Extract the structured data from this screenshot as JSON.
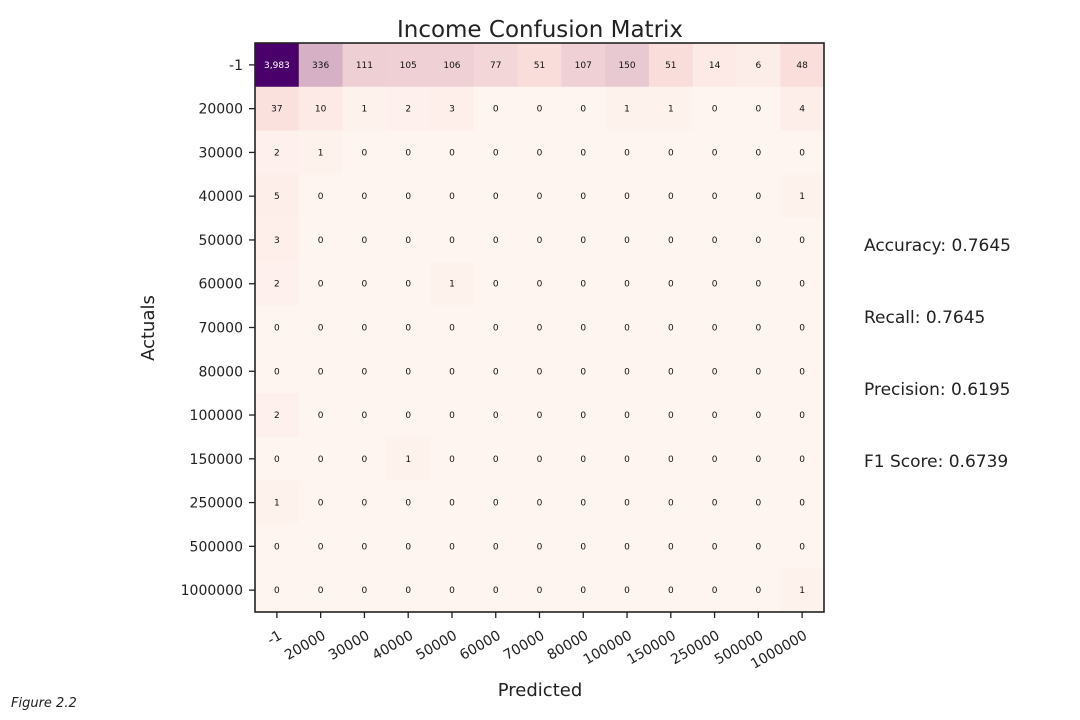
{
  "chart_data": {
    "type": "heatmap",
    "title": "Income Confusion Matrix",
    "xlabel": "Predicted",
    "ylabel": "Actuals",
    "x_categories": [
      "-1",
      "20000",
      "30000",
      "40000",
      "50000",
      "60000",
      "70000",
      "80000",
      "100000",
      "150000",
      "250000",
      "500000",
      "1000000"
    ],
    "y_categories": [
      "-1",
      "20000",
      "30000",
      "40000",
      "50000",
      "60000",
      "70000",
      "80000",
      "100000",
      "150000",
      "250000",
      "500000",
      "1000000"
    ],
    "values": [
      [
        3983,
        336,
        111,
        105,
        106,
        77,
        51,
        107,
        150,
        51,
        14,
        6,
        48
      ],
      [
        37,
        10,
        1,
        2,
        3,
        0,
        0,
        0,
        1,
        1,
        0,
        0,
        4
      ],
      [
        2,
        1,
        0,
        0,
        0,
        0,
        0,
        0,
        0,
        0,
        0,
        0,
        0
      ],
      [
        5,
        0,
        0,
        0,
        0,
        0,
        0,
        0,
        0,
        0,
        0,
        0,
        1
      ],
      [
        3,
        0,
        0,
        0,
        0,
        0,
        0,
        0,
        0,
        0,
        0,
        0,
        0
      ],
      [
        2,
        0,
        0,
        0,
        1,
        0,
        0,
        0,
        0,
        0,
        0,
        0,
        0
      ],
      [
        0,
        0,
        0,
        0,
        0,
        0,
        0,
        0,
        0,
        0,
        0,
        0,
        0
      ],
      [
        0,
        0,
        0,
        0,
        0,
        0,
        0,
        0,
        0,
        0,
        0,
        0,
        0
      ],
      [
        2,
        0,
        0,
        0,
        0,
        0,
        0,
        0,
        0,
        0,
        0,
        0,
        0
      ],
      [
        0,
        0,
        0,
        1,
        0,
        0,
        0,
        0,
        0,
        0,
        0,
        0,
        0
      ],
      [
        1,
        0,
        0,
        0,
        0,
        0,
        0,
        0,
        0,
        0,
        0,
        0,
        0
      ],
      [
        0,
        0,
        0,
        0,
        0,
        0,
        0,
        0,
        0,
        0,
        0,
        0,
        0
      ],
      [
        0,
        0,
        0,
        0,
        0,
        0,
        0,
        0,
        0,
        0,
        0,
        0,
        1
      ]
    ],
    "colormap": {
      "low": "#fff5f0",
      "mid": "#fbe0dd",
      "high": "#4a006a"
    },
    "grid": false,
    "legend": "none"
  },
  "metrics": {
    "accuracy": "Accuracy: 0.7645",
    "recall": "Recall: 0.7645",
    "precision": "Precision: 0.6195",
    "f1": "F1 Score: 0.6739"
  },
  "caption": "Figure 2.2"
}
